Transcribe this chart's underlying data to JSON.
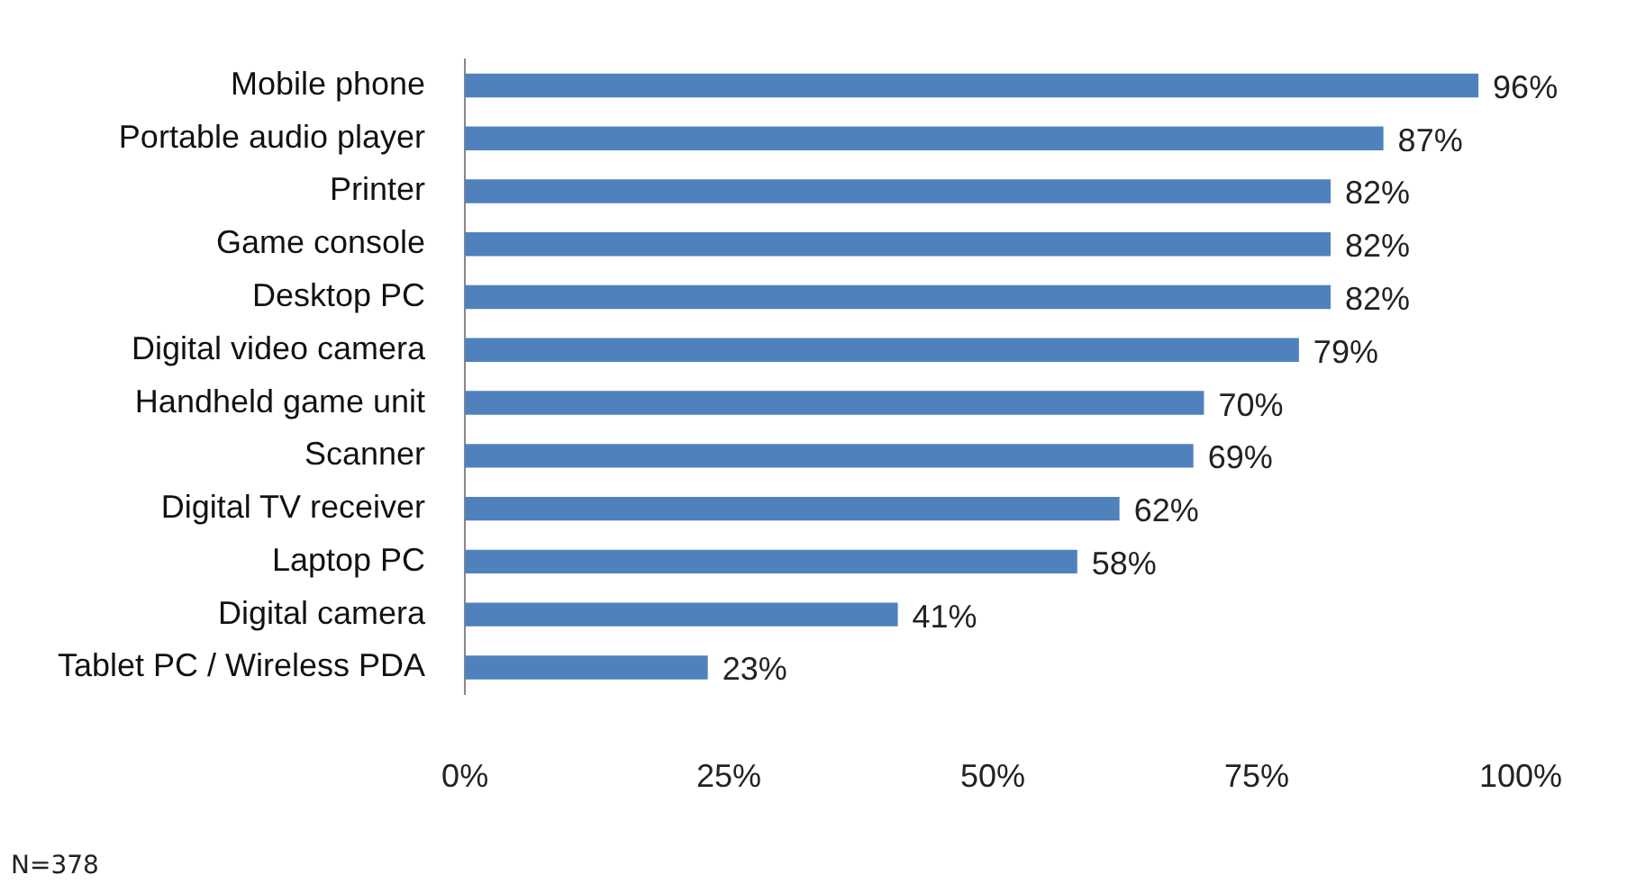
{
  "chart_data": {
    "type": "bar",
    "orientation": "horizontal",
    "categories": [
      "Mobile phone",
      "Portable audio player",
      "Printer",
      "Game console",
      "Desktop PC",
      "Digital video camera",
      "Handheld game unit",
      "Scanner",
      "Digital TV receiver",
      "Laptop PC",
      "Digital camera",
      "Tablet PC / Wireless PDA"
    ],
    "values": [
      96,
      87,
      82,
      82,
      82,
      79,
      70,
      69,
      62,
      58,
      41,
      23
    ],
    "value_labels": [
      "96%",
      "87%",
      "82%",
      "82%",
      "82%",
      "79%",
      "70%",
      "69%",
      "62%",
      "58%",
      "41%",
      "23%"
    ],
    "color": "#4f81bd",
    "xlim": [
      0,
      100
    ],
    "xticks": [
      {
        "value": 0,
        "label": "0%"
      },
      {
        "value": 25,
        "label": "25%"
      },
      {
        "value": 50,
        "label": "50%"
      },
      {
        "value": 75,
        "label": "75%"
      },
      {
        "value": 100,
        "label": "100%"
      }
    ],
    "grid": false,
    "legend": false,
    "annotations": [
      "N=378"
    ]
  }
}
